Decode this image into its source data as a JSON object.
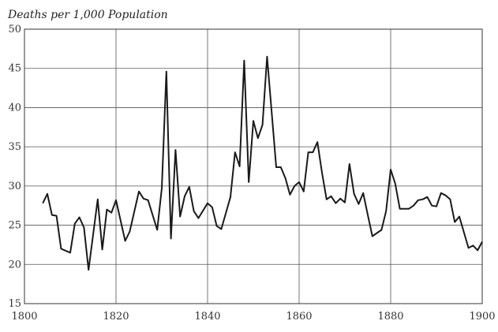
{
  "chart_data": {
    "type": "line",
    "title": "",
    "xlabel": "",
    "ylabel": "Deaths per 1,000 Population",
    "xlim": [
      1800,
      1900
    ],
    "ylim": [
      15,
      50
    ],
    "x_ticks": [
      1800,
      1820,
      1840,
      1860,
      1880,
      1900
    ],
    "y_ticks": [
      15,
      20,
      25,
      30,
      35,
      40,
      45,
      50
    ],
    "grid": true,
    "series": [
      {
        "x": [
          1804,
          1805,
          1806,
          1807,
          1808,
          1810,
          1811,
          1812,
          1813,
          1814,
          1816,
          1817,
          1818,
          1819,
          1820,
          1822,
          1823,
          1825,
          1826,
          1827,
          1829,
          1830,
          1831,
          1832,
          1833,
          1834,
          1835,
          1836,
          1837,
          1838,
          1840,
          1841,
          1842,
          1843,
          1845,
          1846,
          1847,
          1848,
          1849,
          1850,
          1851,
          1852,
          1853,
          1855,
          1856,
          1857,
          1858,
          1859,
          1860,
          1861,
          1862,
          1863,
          1864,
          1865,
          1866,
          1867,
          1868,
          1869,
          1870,
          1871,
          1872,
          1873,
          1874,
          1875,
          1876,
          1877,
          1878,
          1879,
          1880,
          1881,
          1882,
          1883,
          1884,
          1885,
          1886,
          1887,
          1888,
          1889,
          1890,
          1891,
          1892,
          1893,
          1894,
          1895,
          1896,
          1897,
          1898,
          1899,
          1900
        ],
        "values": [
          27.8,
          29.0,
          26.3,
          26.2,
          22.0,
          21.5,
          25.2,
          26.0,
          24.7,
          19.3,
          28.3,
          21.9,
          27.0,
          26.6,
          28.2,
          23.0,
          24.2,
          29.3,
          28.4,
          28.2,
          24.4,
          29.7,
          44.6,
          23.3,
          34.6,
          26.1,
          28.7,
          29.9,
          26.8,
          25.9,
          27.8,
          27.3,
          24.9,
          24.5,
          28.6,
          34.3,
          32.5,
          46.0,
          30.5,
          38.3,
          36.1,
          37.8,
          46.5,
          32.4,
          32.4,
          31.0,
          28.9,
          30.0,
          30.5,
          29.3,
          34.3,
          34.3,
          35.6,
          31.7,
          28.3,
          28.7,
          27.8,
          28.4,
          27.9,
          32.8,
          29.0,
          27.7,
          29.1,
          26.3,
          23.6,
          24.0,
          24.4,
          26.8,
          32.1,
          30.3,
          27.1,
          27.1,
          27.1,
          27.5,
          28.2,
          28.3,
          28.6,
          27.5,
          27.4,
          29.1,
          28.8,
          28.3,
          25.4,
          26.1,
          24.1,
          22.1,
          22.4,
          21.8,
          22.9
        ]
      }
    ]
  }
}
